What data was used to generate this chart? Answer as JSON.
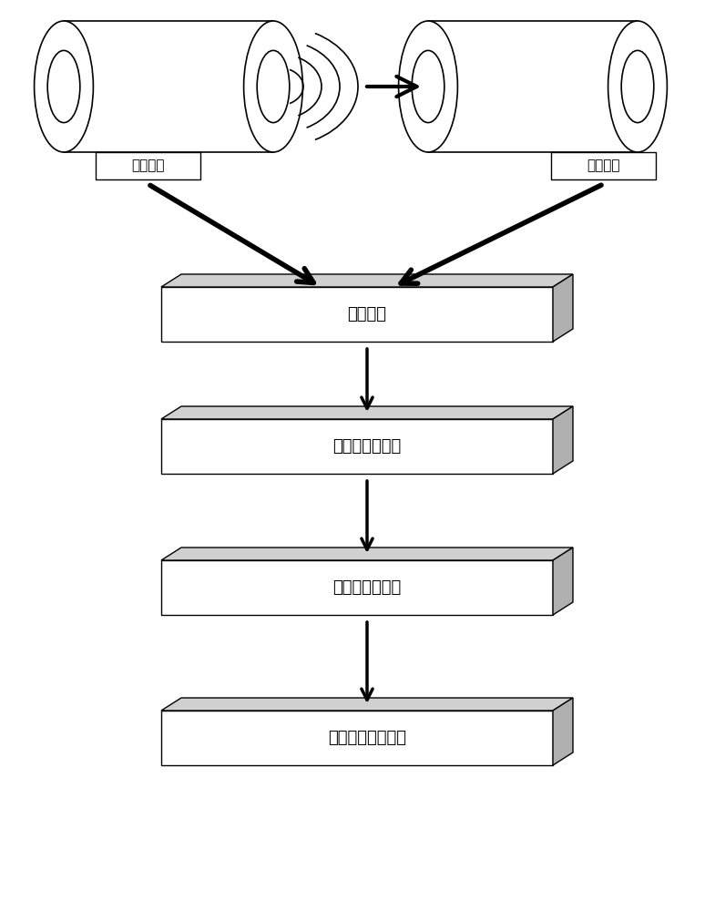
{
  "bg_color": "#ffffff",
  "box_face_color": "#ffffff",
  "box_top_color": "#d0d0d0",
  "box_side_color": "#b0b0b0",
  "box_edge_color": "#000000",
  "label_left": "信号发射",
  "label_right": "信号接收",
  "box_labels": [
    "信号放大",
    "信号与波形导出",
    "传播与衰减分析",
    "煤质特性变化判别"
  ],
  "label_fontsize": 13,
  "label_fontsize_small": 11,
  "cyl_body_color": "#ffffff",
  "cyl_edge_color": "#000000"
}
